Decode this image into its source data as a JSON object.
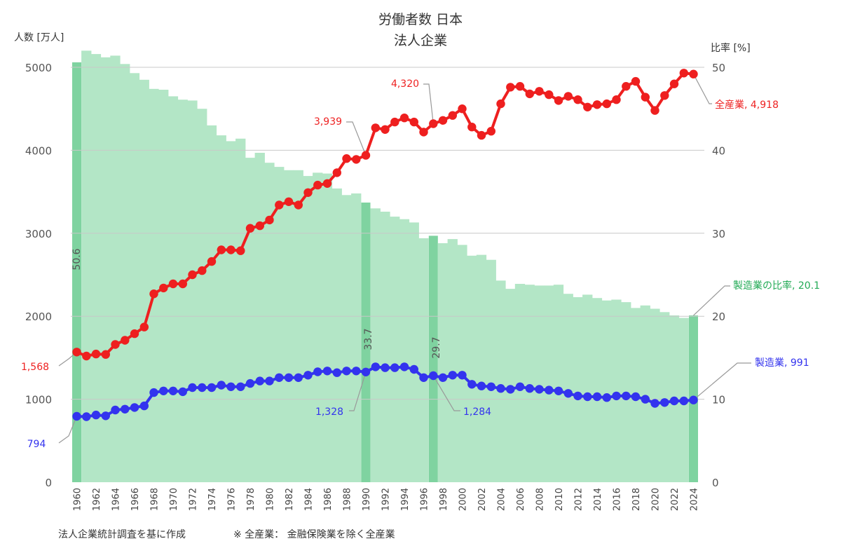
{
  "colors": {
    "all_industry": "#ee1f1f",
    "manufacturing": "#3333ee",
    "ratio_bar": "#b3e6c6",
    "ratio_highlight": "#7fd3a0",
    "ratio_label": "#22aa55"
  },
  "labels": {
    "title_line1": "労働者数 日本",
    "title_line2": "法人企業",
    "left_axis_title": "人数 [万人]",
    "right_axis_title": "比率 [%]",
    "footnote_left": "法人企業統計調査を基に作成",
    "footnote_right": "※ 全産業： 金融保険業を除く全産業"
  },
  "annotations": {
    "all_1960": "1,568",
    "all_1990": "3,939",
    "all_1997": "4,320",
    "all_end": "全産業, 4,918",
    "mfg_1960": "794",
    "mfg_1990": "1,328",
    "mfg_1997": "1,284",
    "mfg_end": "製造業, 991",
    "ratio_end": "製造業の比率, 20.1",
    "ratio_1960": "50.6",
    "ratio_1990": "33.7",
    "ratio_1997": "29.7"
  },
  "chart_data": {
    "type": "line",
    "x": [
      1960,
      1961,
      1962,
      1963,
      1964,
      1965,
      1966,
      1967,
      1968,
      1969,
      1970,
      1971,
      1972,
      1973,
      1974,
      1975,
      1976,
      1977,
      1978,
      1979,
      1980,
      1981,
      1982,
      1983,
      1984,
      1985,
      1986,
      1987,
      1988,
      1989,
      1990,
      1991,
      1992,
      1993,
      1994,
      1995,
      1996,
      1997,
      1998,
      1999,
      2000,
      2001,
      2002,
      2003,
      2004,
      2005,
      2006,
      2007,
      2008,
      2009,
      2010,
      2011,
      2012,
      2013,
      2014,
      2015,
      2016,
      2017,
      2018,
      2019,
      2020,
      2021,
      2022,
      2023,
      2024
    ],
    "x_ticks": [
      1960,
      1962,
      1964,
      1966,
      1968,
      1970,
      1972,
      1974,
      1976,
      1978,
      1980,
      1982,
      1984,
      1986,
      1988,
      1990,
      1992,
      1994,
      1996,
      1998,
      2000,
      2002,
      2004,
      2006,
      2008,
      2010,
      2012,
      2014,
      2016,
      2018,
      2020,
      2022,
      2024
    ],
    "y_left_ticks": [
      0,
      1000,
      2000,
      3000,
      4000,
      5000
    ],
    "y_left_range": [
      0,
      5000
    ],
    "y_right_ticks": [
      0,
      10,
      20,
      30,
      40,
      50
    ],
    "y_right_range": [
      0,
      50
    ],
    "grid": true,
    "series": [
      {
        "name": "全産業",
        "axis": "left",
        "type": "line",
        "values": [
          1568,
          1520,
          1545,
          1540,
          1660,
          1710,
          1790,
          1870,
          2270,
          2340,
          2390,
          2390,
          2500,
          2550,
          2660,
          2800,
          2800,
          2790,
          3060,
          3090,
          3160,
          3340,
          3380,
          3340,
          3490,
          3580,
          3600,
          3730,
          3900,
          3890,
          3939,
          4270,
          4250,
          4340,
          4390,
          4340,
          4220,
          4320,
          4360,
          4420,
          4500,
          4280,
          4180,
          4230,
          4560,
          4760,
          4770,
          4680,
          4710,
          4670,
          4600,
          4650,
          4610,
          4520,
          4550,
          4560,
          4610,
          4770,
          4830,
          4640,
          4480,
          4660,
          4800,
          4930,
          4918
        ]
      },
      {
        "name": "製造業",
        "axis": "left",
        "type": "line",
        "values": [
          794,
          790,
          810,
          800,
          870,
          880,
          900,
          920,
          1080,
          1100,
          1100,
          1090,
          1140,
          1140,
          1140,
          1170,
          1150,
          1150,
          1190,
          1220,
          1220,
          1260,
          1260,
          1260,
          1290,
          1330,
          1340,
          1320,
          1340,
          1340,
          1328,
          1390,
          1380,
          1380,
          1390,
          1360,
          1260,
          1284,
          1260,
          1290,
          1290,
          1180,
          1160,
          1150,
          1130,
          1120,
          1150,
          1130,
          1120,
          1110,
          1100,
          1070,
          1040,
          1030,
          1030,
          1020,
          1040,
          1040,
          1030,
          1000,
          950,
          960,
          980,
          980,
          991
        ]
      },
      {
        "name": "製造業の比率",
        "axis": "right",
        "type": "bar",
        "values": [
          50.6,
          52.0,
          51.6,
          51.2,
          51.4,
          50.4,
          49.3,
          48.5,
          47.4,
          47.3,
          46.5,
          46.1,
          46.0,
          45.0,
          43.0,
          41.8,
          41.1,
          41.4,
          39.1,
          39.7,
          38.5,
          38.0,
          37.6,
          37.6,
          36.9,
          37.3,
          37.2,
          35.4,
          34.6,
          34.8,
          33.7,
          33.0,
          32.6,
          32.0,
          31.7,
          31.3,
          29.4,
          29.7,
          28.8,
          29.3,
          28.6,
          27.3,
          27.4,
          26.8,
          24.3,
          23.3,
          23.9,
          23.8,
          23.7,
          23.7,
          23.8,
          22.7,
          22.3,
          22.6,
          22.2,
          21.9,
          22.0,
          21.7,
          21.0,
          21.3,
          20.9,
          20.5,
          20.1,
          19.8,
          20.1
        ],
        "highlighted_years": [
          1960,
          1990,
          1997,
          2024
        ]
      }
    ]
  }
}
